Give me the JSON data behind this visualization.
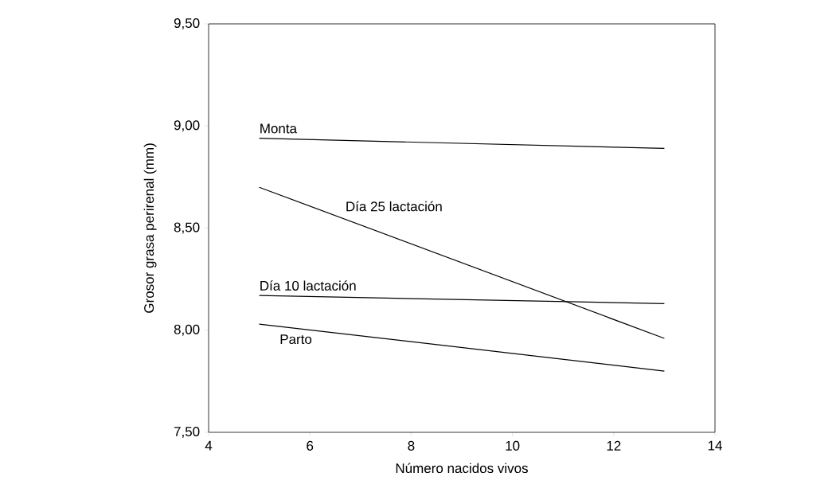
{
  "chart_data": {
    "type": "line",
    "xlabel": "Número nacidos vivos",
    "ylabel": "Grosor grasa perirenal (mm)",
    "x": [
      5,
      13
    ],
    "series": [
      {
        "name": "Monta",
        "color": "#000000",
        "values": [
          8.94,
          8.89
        ]
      },
      {
        "name": "Día 25 lactación",
        "color": "#000000",
        "values": [
          8.7,
          7.96
        ]
      },
      {
        "name": "Día 10 lactación",
        "color": "#000000",
        "values": [
          8.17,
          8.13
        ]
      },
      {
        "name": "Parto",
        "color": "#000000",
        "values": [
          8.03,
          7.8
        ]
      }
    ],
    "xlim": [
      4,
      14
    ],
    "ylim": [
      7.5,
      9.5
    ],
    "xticks": [
      4,
      6,
      8,
      10,
      12,
      14
    ],
    "yticks": [
      {
        "value": 7.5,
        "label": "7,50"
      },
      {
        "value": 8.0,
        "label": "8,00"
      },
      {
        "value": 8.5,
        "label": "8,50"
      },
      {
        "value": 9.0,
        "label": "9,00"
      },
      {
        "value": 9.5,
        "label": "9,50"
      }
    ],
    "grid": false,
    "marker": "none",
    "line_style": "solid"
  }
}
